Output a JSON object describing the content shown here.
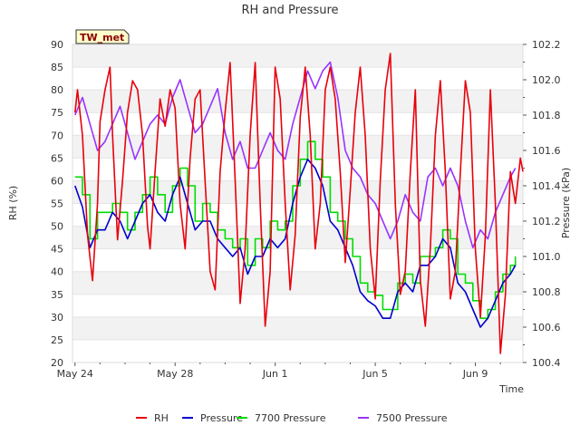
{
  "chart_data": {
    "type": "line",
    "title": "RH and Pressure",
    "badge": "TW_met",
    "xlabel": "Time",
    "ylabel": "RH (%)",
    "y2label": "Pressure (kPa)",
    "x_ticks": [
      "May 24",
      "May 28",
      "Jun 1",
      "Jun 5",
      "Jun 9"
    ],
    "x_tick_days": [
      0,
      4,
      8,
      12,
      16
    ],
    "x_range_days": [
      -0.1,
      17.9
    ],
    "ylim": [
      20,
      90
    ],
    "y_ticks": [
      20,
      25,
      30,
      35,
      40,
      45,
      50,
      55,
      60,
      65,
      70,
      75,
      80,
      85,
      90
    ],
    "y2lim": [
      100.4,
      102.2
    ],
    "y2_ticks": [
      "100.4",
      "100.6",
      "100.8",
      "101.0",
      "101.2",
      "101.4",
      "101.6",
      "101.8",
      "102.0",
      "102.2"
    ],
    "grid": true,
    "legend_position": "bottom",
    "series": [
      {
        "name": "RH",
        "axis": "left",
        "color": "#e8000b",
        "x": [
          0.0,
          0.1,
          0.3,
          0.5,
          0.7,
          0.9,
          1.0,
          1.2,
          1.4,
          1.5,
          1.7,
          1.9,
          2.1,
          2.3,
          2.5,
          2.7,
          2.9,
          3.0,
          3.2,
          3.4,
          3.6,
          3.8,
          4.0,
          4.2,
          4.4,
          4.6,
          4.8,
          5.0,
          5.2,
          5.4,
          5.6,
          5.8,
          6.0,
          6.2,
          6.4,
          6.6,
          6.8,
          7.0,
          7.2,
          7.4,
          7.6,
          7.8,
          8.0,
          8.2,
          8.4,
          8.6,
          8.8,
          9.0,
          9.2,
          9.4,
          9.6,
          9.8,
          10.0,
          10.2,
          10.4,
          10.6,
          10.8,
          11.0,
          11.2,
          11.4,
          11.6,
          11.8,
          12.0,
          12.2,
          12.4,
          12.6,
          12.8,
          13.0,
          13.2,
          13.4,
          13.6,
          13.8,
          14.0,
          14.2,
          14.4,
          14.6,
          14.8,
          15.0,
          15.2,
          15.4,
          15.6,
          15.8,
          16.0,
          16.2,
          16.4,
          16.6,
          16.8,
          17.0,
          17.2,
          17.4,
          17.6,
          17.8,
          17.9
        ],
        "values": [
          75,
          80,
          70,
          48,
          38,
          55,
          73,
          80,
          85,
          70,
          47,
          60,
          75,
          82,
          80,
          70,
          50,
          45,
          62,
          78,
          72,
          80,
          76,
          55,
          45,
          65,
          78,
          80,
          60,
          40,
          36,
          62,
          75,
          86,
          60,
          33,
          45,
          70,
          86,
          55,
          28,
          40,
          85,
          78,
          55,
          36,
          48,
          74,
          85,
          70,
          45,
          55,
          80,
          85,
          78,
          62,
          42,
          58,
          75,
          85,
          70,
          45,
          34,
          60,
          80,
          88,
          55,
          35,
          40,
          62,
          80,
          38,
          28,
          45,
          70,
          82,
          62,
          34,
          40,
          62,
          82,
          75,
          45,
          30,
          48,
          80,
          55,
          22,
          35,
          62,
          55,
          65,
          62
        ]
      },
      {
        "name": "Pressure",
        "axis": "right",
        "color": "#0000cc",
        "x": [
          0.0,
          0.3,
          0.6,
          0.9,
          1.2,
          1.5,
          1.8,
          2.1,
          2.4,
          2.7,
          3.0,
          3.3,
          3.6,
          3.9,
          4.2,
          4.5,
          4.8,
          5.1,
          5.4,
          5.7,
          6.0,
          6.3,
          6.6,
          6.9,
          7.2,
          7.5,
          7.8,
          8.1,
          8.4,
          8.7,
          9.0,
          9.3,
          9.6,
          9.9,
          10.2,
          10.5,
          10.8,
          11.1,
          11.4,
          11.7,
          12.0,
          12.3,
          12.6,
          12.9,
          13.2,
          13.5,
          13.8,
          14.1,
          14.4,
          14.7,
          15.0,
          15.3,
          15.6,
          15.9,
          16.2,
          16.5,
          16.8,
          17.1,
          17.4,
          17.6
        ],
        "values": [
          101.4,
          101.28,
          101.05,
          101.15,
          101.15,
          101.25,
          101.2,
          101.1,
          101.2,
          101.3,
          101.35,
          101.25,
          101.2,
          101.35,
          101.45,
          101.3,
          101.15,
          101.2,
          101.2,
          101.1,
          101.05,
          101.0,
          101.05,
          100.9,
          101.0,
          101.0,
          101.1,
          101.05,
          101.1,
          101.3,
          101.45,
          101.55,
          101.5,
          101.4,
          101.2,
          101.15,
          101.05,
          100.95,
          100.8,
          100.75,
          100.72,
          100.65,
          100.65,
          100.8,
          100.85,
          100.8,
          100.95,
          100.95,
          101.0,
          101.1,
          101.05,
          100.85,
          100.8,
          100.7,
          100.6,
          100.65,
          100.75,
          100.85,
          100.9,
          100.95
        ]
      },
      {
        "name": "7700 Pressure",
        "axis": "right",
        "color": "#00dd00",
        "x": [
          0.0,
          0.3,
          0.6,
          0.9,
          1.2,
          1.5,
          1.8,
          2.1,
          2.4,
          2.7,
          3.0,
          3.3,
          3.6,
          3.9,
          4.2,
          4.5,
          4.8,
          5.1,
          5.4,
          5.7,
          6.0,
          6.3,
          6.6,
          6.9,
          7.2,
          7.5,
          7.8,
          8.1,
          8.4,
          8.7,
          9.0,
          9.3,
          9.6,
          9.9,
          10.2,
          10.5,
          10.8,
          11.1,
          11.4,
          11.7,
          12.0,
          12.3,
          12.6,
          12.9,
          13.2,
          13.5,
          13.8,
          14.1,
          14.4,
          14.7,
          15.0,
          15.3,
          15.6,
          15.9,
          16.2,
          16.5,
          16.8,
          17.1,
          17.4,
          17.6
        ],
        "values": [
          101.45,
          101.35,
          101.1,
          101.25,
          101.25,
          101.3,
          101.25,
          101.15,
          101.25,
          101.35,
          101.45,
          101.35,
          101.25,
          101.4,
          101.5,
          101.4,
          101.2,
          101.3,
          101.25,
          101.15,
          101.1,
          101.05,
          101.1,
          100.95,
          101.1,
          101.05,
          101.2,
          101.15,
          101.2,
          101.4,
          101.55,
          101.65,
          101.55,
          101.45,
          101.25,
          101.2,
          101.1,
          101.0,
          100.85,
          100.8,
          100.78,
          100.7,
          100.7,
          100.85,
          100.9,
          100.85,
          101.0,
          101.0,
          101.05,
          101.15,
          101.1,
          100.9,
          100.85,
          100.75,
          100.65,
          100.7,
          100.8,
          100.9,
          100.95,
          101.0
        ]
      },
      {
        "name": "7500 Pressure",
        "axis": "right",
        "color": "#9933ff",
        "x": [
          0.0,
          0.3,
          0.6,
          0.9,
          1.2,
          1.5,
          1.8,
          2.1,
          2.4,
          2.7,
          3.0,
          3.3,
          3.6,
          3.9,
          4.2,
          4.5,
          4.8,
          5.1,
          5.4,
          5.7,
          6.0,
          6.3,
          6.6,
          6.9,
          7.2,
          7.5,
          7.8,
          8.1,
          8.4,
          8.7,
          9.0,
          9.3,
          9.6,
          9.9,
          10.2,
          10.5,
          10.8,
          11.1,
          11.4,
          11.7,
          12.0,
          12.3,
          12.6,
          12.9,
          13.2,
          13.5,
          13.8,
          14.1,
          14.4,
          14.7,
          15.0,
          15.3,
          15.6,
          15.9,
          16.2,
          16.5,
          16.8,
          17.1,
          17.4,
          17.6
        ],
        "values": [
          101.8,
          101.9,
          101.75,
          101.6,
          101.65,
          101.75,
          101.85,
          101.7,
          101.55,
          101.65,
          101.75,
          101.8,
          101.75,
          101.9,
          102.0,
          101.85,
          101.7,
          101.75,
          101.85,
          101.95,
          101.7,
          101.55,
          101.65,
          101.5,
          101.5,
          101.6,
          101.7,
          101.6,
          101.55,
          101.75,
          101.9,
          102.05,
          101.95,
          102.05,
          102.1,
          101.9,
          101.6,
          101.5,
          101.45,
          101.35,
          101.3,
          101.2,
          101.1,
          101.2,
          101.35,
          101.25,
          101.2,
          101.45,
          101.5,
          101.4,
          101.5,
          101.4,
          101.2,
          101.05,
          101.15,
          101.1,
          101.25,
          101.35,
          101.45,
          101.5
        ]
      }
    ]
  }
}
